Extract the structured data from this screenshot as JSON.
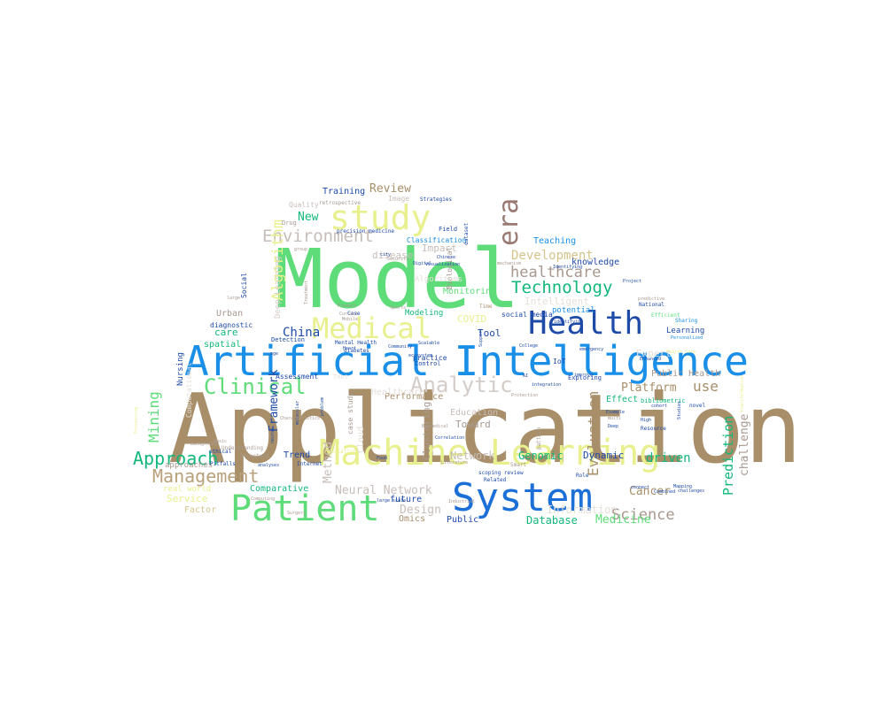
{
  "word_cloud": {
    "words": [
      {
        "text": "Application",
        "color": "#a88f6a"
      },
      {
        "text": "Model",
        "color": "#5fdc7a"
      },
      {
        "text": "Artificial Intelligence",
        "color": "#1a8fe8"
      },
      {
        "text": "Machine Learning",
        "color": "#e8f08e"
      },
      {
        "text": "System",
        "color": "#1d6fd8"
      },
      {
        "text": "Patient",
        "color": "#5fdc7a"
      },
      {
        "text": "Health",
        "color": "#1e4aa8"
      },
      {
        "text": "study",
        "color": "#e8f08e"
      },
      {
        "text": "Medical",
        "color": "#e8f08e"
      },
      {
        "text": "era",
        "color": "#9a7a72"
      },
      {
        "text": "Analytic",
        "color": "#d4ccc8"
      },
      {
        "text": "Clinical",
        "color": "#5fdc7a"
      },
      {
        "text": "Environment",
        "color": "#c7bdb8"
      },
      {
        "text": "Management",
        "color": "#b8a07a"
      },
      {
        "text": "Approach",
        "color": "#12b87a"
      },
      {
        "text": "Technology",
        "color": "#12b87a"
      },
      {
        "text": "healthcare",
        "color": "#a89890"
      },
      {
        "text": "Algorithm",
        "color": "#e8f08e"
      },
      {
        "text": "Mining",
        "color": "#5fdc7a"
      },
      {
        "text": "Science",
        "color": "#a89890"
      },
      {
        "text": "Prediction",
        "color": "#12b87a"
      },
      {
        "text": "Evaluation",
        "color": "#a88f6a"
      },
      {
        "text": "Network",
        "color": "#c7bdb8"
      },
      {
        "text": "Neural Network",
        "color": "#c7bdb8"
      },
      {
        "text": "Development",
        "color": "#d4c48a"
      },
      {
        "text": "Review",
        "color": "#a88f6a"
      },
      {
        "text": "New",
        "color": "#12b87a"
      },
      {
        "text": "China",
        "color": "#1e4aa8"
      },
      {
        "text": "driven",
        "color": "#12b87a"
      },
      {
        "text": "challenge",
        "color": "#a89890"
      },
      {
        "text": "Cancer",
        "color": "#a88f6a"
      },
      {
        "text": "Platform",
        "color": "#a88f6a"
      },
      {
        "text": "use",
        "color": "#a88f6a"
      },
      {
        "text": "Framework",
        "color": "#1e4aa8"
      },
      {
        "text": "Method",
        "color": "#c7bdb8"
      },
      {
        "text": "Medicine",
        "color": "#5fdc7a"
      },
      {
        "text": "Database",
        "color": "#12b87a"
      },
      {
        "text": "Design",
        "color": "#c7bdb8"
      },
      {
        "text": "Genomic",
        "color": "#12b87a"
      },
      {
        "text": "Dynamic",
        "color": "#1e4aa8"
      },
      {
        "text": "Intelligent",
        "color": "#e4ded8"
      },
      {
        "text": "Monitoring",
        "color": "#5fdc7a"
      },
      {
        "text": "Tool",
        "color": "#1e4aa8"
      },
      {
        "text": "COVID",
        "color": "#e8f08e"
      },
      {
        "text": "Training",
        "color": "#1e4aa8"
      },
      {
        "text": "Teaching",
        "color": "#1a8fe8"
      },
      {
        "text": "knowledge",
        "color": "#1e4aa8"
      },
      {
        "text": "Impact",
        "color": "#c7bdb8"
      },
      {
        "text": "disease",
        "color": "#c7bdb8"
      },
      {
        "text": "care",
        "color": "#12b87a"
      },
      {
        "text": "spatial",
        "color": "#12b87a"
      },
      {
        "text": "Service",
        "color": "#e8f08e"
      },
      {
        "text": "Factor",
        "color": "#d4c48a"
      },
      {
        "text": "Comparative",
        "color": "#12b87a"
      },
      {
        "text": "Education",
        "color": "#c7bdb8"
      },
      {
        "text": "Toward",
        "color": "#a89890"
      },
      {
        "text": "Performance",
        "color": "#a88f6a"
      },
      {
        "text": "Clustering",
        "color": "#a89890"
      },
      {
        "text": "Trend",
        "color": "#1e4aa8"
      },
      {
        "text": "Omics",
        "color": "#a88f6a"
      },
      {
        "text": "Public",
        "color": "#1e4aa8"
      },
      {
        "text": "future",
        "color": "#1e4aa8"
      },
      {
        "text": "Public Health",
        "color": "#a89890"
      },
      {
        "text": "Learning",
        "color": "#1e4aa8"
      },
      {
        "text": "Effect",
        "color": "#12b87a"
      },
      {
        "text": "Modeling",
        "color": "#12b87a"
      },
      {
        "text": "social media",
        "color": "#1e4aa8"
      },
      {
        "text": "potential",
        "color": "#1a8fe8"
      },
      {
        "text": "Classification",
        "color": "#1a8fe8"
      },
      {
        "text": "Deep Learning",
        "color": "#d4ccc8"
      },
      {
        "text": "Urban",
        "color": "#a89890"
      },
      {
        "text": "diagnostic",
        "color": "#1e4aa8"
      },
      {
        "text": "Nursing",
        "color": "#1e4aa8"
      },
      {
        "text": "approaches",
        "color": "#a89890"
      },
      {
        "text": "real world",
        "color": "#e8f08e"
      },
      {
        "text": "Computational",
        "color": "#e4ded8"
      },
      {
        "text": "Social",
        "color": "#1e4aa8"
      },
      {
        "text": "Image",
        "color": "#c7bdb8"
      },
      {
        "text": "Quality",
        "color": "#c7bdb8"
      },
      {
        "text": "IoT",
        "color": "#1e4aa8"
      },
      {
        "text": "practice",
        "color": "#1e4aa8"
      },
      {
        "text": "Control",
        "color": "#1e4aa8"
      },
      {
        "text": "case study",
        "color": "#a89890"
      },
      {
        "text": "Biological",
        "color": "#a89890"
      },
      {
        "text": "Drug",
        "color": "#a89890"
      },
      {
        "text": "Field",
        "color": "#1e4aa8"
      },
      {
        "text": "dataset",
        "color": "#1e4aa8"
      },
      {
        "text": "Strategies",
        "color": "#1e4aa8"
      },
      {
        "text": "retrospective",
        "color": "#a89890"
      },
      {
        "text": "precision medicine",
        "color": "#1e4aa8"
      },
      {
        "text": "Assessment",
        "color": "#1e4aa8"
      },
      {
        "text": "Detection",
        "color": "#1e4aa8"
      },
      {
        "text": "Exploring",
        "color": "#1e4aa8"
      },
      {
        "text": "Related",
        "color": "#1e4aa8"
      },
      {
        "text": "scoping review",
        "color": "#1e4aa8"
      },
      {
        "text": "Role",
        "color": "#1e4aa8"
      },
      {
        "text": "Case",
        "color": "#1e4aa8"
      },
      {
        "text": "Smart",
        "color": "#a89890"
      },
      {
        "text": "pattern",
        "color": "#a89890"
      },
      {
        "text": "Population",
        "color": "#e8f08e"
      },
      {
        "text": "Text",
        "color": "#e4ded8"
      },
      {
        "text": "ethical",
        "color": "#1e4aa8"
      },
      {
        "text": "Pitfalls",
        "color": "#1e4aa8"
      },
      {
        "text": "Structure",
        "color": "#a89890"
      },
      {
        "text": "Understanding",
        "color": "#a89890"
      },
      {
        "text": "Mental Health",
        "color": "#1e4aa8"
      },
      {
        "text": "diabetes",
        "color": "#1e4aa8"
      },
      {
        "text": "Sports",
        "color": "#a89890"
      },
      {
        "text": "Product",
        "color": "#a89890"
      },
      {
        "text": "Current",
        "color": "#a89890"
      },
      {
        "text": "Mobile",
        "color": "#a89890"
      },
      {
        "text": "Time",
        "color": "#a88f6a"
      },
      {
        "text": "Security",
        "color": "#a89890"
      },
      {
        "text": "group",
        "color": "#a89890"
      },
      {
        "text": "Chinese",
        "color": "#1e4aa8"
      },
      {
        "text": "visualization",
        "color": "#1e4aa8"
      },
      {
        "text": "Efficient",
        "color": "#5fdc7a"
      },
      {
        "text": "Sharing",
        "color": "#1a8fe8"
      },
      {
        "text": "National",
        "color": "#1e4aa8"
      },
      {
        "text": "predictive",
        "color": "#a89890"
      },
      {
        "text": "bibliometric",
        "color": "#12b87a"
      },
      {
        "text": "Personalized",
        "color": "#1a8fe8"
      },
      {
        "text": "High",
        "color": "#1e4aa8"
      },
      {
        "text": "Resource",
        "color": "#1e4aa8"
      },
      {
        "text": "novel",
        "color": "#1e4aa8"
      },
      {
        "text": "cohort",
        "color": "#1e4aa8"
      },
      {
        "text": "Example",
        "color": "#1e4aa8"
      },
      {
        "text": "Deep",
        "color": "#1e4aa8"
      },
      {
        "text": "multi",
        "color": "#a89890"
      },
      {
        "text": "emergency",
        "color": "#1e4aa8"
      },
      {
        "text": "College",
        "color": "#1e4aa8"
      },
      {
        "text": "improve",
        "color": "#1e4aa8"
      },
      {
        "text": "integration",
        "color": "#1e4aa8"
      },
      {
        "text": "Protection",
        "color": "#a89890"
      },
      {
        "text": "AI",
        "color": "#1e4aa8"
      },
      {
        "text": "Support",
        "color": "#1e4aa8"
      },
      {
        "text": "Scalable",
        "color": "#1e4aa8"
      },
      {
        "text": "Literature",
        "color": "#a89890"
      },
      {
        "text": "ecosystem",
        "color": "#1e4aa8"
      },
      {
        "text": "Industrial",
        "color": "#a89890"
      },
      {
        "text": "large scale",
        "color": "#1e4aa8"
      },
      {
        "text": "Internet",
        "color": "#1e4aa8"
      },
      {
        "text": "Surgery",
        "color": "#a89890"
      },
      {
        "text": "Computing",
        "color": "#a89890"
      },
      {
        "text": "Food",
        "color": "#1e4aa8"
      },
      {
        "text": "problem",
        "color": "#1e4aa8"
      },
      {
        "text": "molecular",
        "color": "#1e4aa8"
      },
      {
        "text": "Processing",
        "color": "#e8f08e"
      },
      {
        "text": "transformation",
        "color": "#e8f08e"
      },
      {
        "text": "Music",
        "color": "#a89890"
      },
      {
        "text": "analyses",
        "color": "#1e4aa8"
      },
      {
        "text": "large",
        "color": "#a89890"
      },
      {
        "text": "Treatment",
        "color": "#a89890"
      },
      {
        "text": "Community",
        "color": "#1e4aa8"
      },
      {
        "text": "Characteristics",
        "color": "#a89890"
      },
      {
        "text": "identifying",
        "color": "#1e4aa8"
      },
      {
        "text": "mechanism",
        "color": "#a89890"
      },
      {
        "text": "Project",
        "color": "#1e4aa8"
      },
      {
        "text": "Combined",
        "color": "#1e4aa8"
      },
      {
        "text": "connect",
        "color": "#1e4aa8"
      },
      {
        "text": "challenges",
        "color": "#1e4aa8"
      },
      {
        "text": "Mapping",
        "color": "#1e4aa8"
      },
      {
        "text": "Biomedical",
        "color": "#a89890"
      },
      {
        "text": "Correlation",
        "color": "#1e4aa8"
      },
      {
        "text": "Identifying",
        "color": "#1e4aa8"
      },
      {
        "text": "Studies",
        "color": "#1e4aa8"
      },
      {
        "text": "city",
        "color": "#1e4aa8"
      },
      {
        "text": "Background",
        "color": "#a89890"
      },
      {
        "text": "age",
        "color": "#1e4aa8"
      },
      {
        "text": "Digital",
        "color": "#1e4aa8"
      },
      {
        "text": "Heart",
        "color": "#1e4aa8"
      },
      {
        "text": "neural",
        "color": "#1e4aa8"
      },
      {
        "text": "Enhanced",
        "color": "#1e4aa8"
      },
      {
        "text": "Health Care",
        "color": "#e8f08e"
      },
      {
        "text": "Information",
        "color": "#e4ded8"
      },
      {
        "text": "Expert",
        "color": "#e4ded8"
      },
      {
        "text": "Cloud",
        "color": "#e4ded8"
      },
      {
        "text": "Healthcare",
        "color": "#e4ded8"
      },
      {
        "text": "Algorithms",
        "color": "#e4ded8"
      }
    ]
  }
}
